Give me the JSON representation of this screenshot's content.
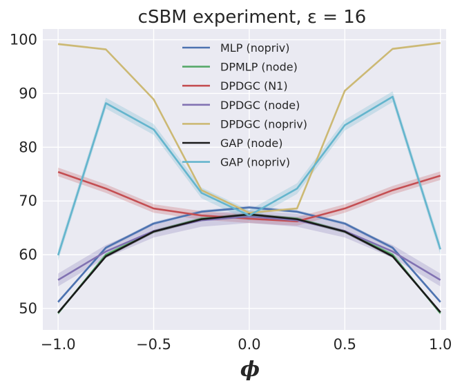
{
  "chart_data": {
    "type": "line",
    "title": "cSBM experiment, ε = 16",
    "xlabel": "ϕ",
    "ylabel": "",
    "xlim": [
      -1.08,
      1.03
    ],
    "ylim": [
      46,
      102
    ],
    "xticks": [
      -1.0,
      -0.5,
      0.0,
      0.5,
      1.0
    ],
    "xtick_labels": [
      "−1.0",
      "−0.5",
      "0.0",
      "0.5",
      "1.0"
    ],
    "yticks": [
      50,
      60,
      70,
      80,
      90,
      100
    ],
    "ytick_labels": [
      "50",
      "60",
      "70",
      "80",
      "90",
      "100"
    ],
    "grid": true,
    "background": "#eaeaf2",
    "legend_position": "top-center",
    "x": [
      -1.0,
      -0.75,
      -0.5,
      -0.25,
      0.0,
      0.25,
      0.5,
      0.75,
      1.0
    ],
    "series": [
      {
        "name": "MLP (nopriv)",
        "color": "#4c72b0",
        "values": [
          51.2,
          61.3,
          65.8,
          68.0,
          68.8,
          68.0,
          65.8,
          61.3,
          51.2
        ],
        "band": 0.3
      },
      {
        "name": "DPMLP (node)",
        "color": "#55a868",
        "values": [
          49.1,
          60.0,
          64.3,
          66.7,
          67.4,
          66.7,
          64.3,
          60.0,
          49.1
        ],
        "band": 0.3
      },
      {
        "name": "DPDGC (N1)",
        "color": "#c44e52",
        "values": [
          75.4,
          72.3,
          68.6,
          67.3,
          66.7,
          66.2,
          68.6,
          72.0,
          74.7
        ],
        "band": 0.8
      },
      {
        "name": "DPDGC (node)",
        "color": "#8172b2",
        "values": [
          55.3,
          60.6,
          64.4,
          66.4,
          67.1,
          66.4,
          64.4,
          60.6,
          55.3
        ],
        "band": 1.2
      },
      {
        "name": "DPDGC (nopriv)",
        "color": "#ccb974",
        "values": [
          99.2,
          98.2,
          88.9,
          72.0,
          67.8,
          68.6,
          90.5,
          98.3,
          99.4
        ],
        "band": 0.2
      },
      {
        "name": "GAP (node)",
        "color": "#1a1a1a",
        "values": [
          49.2,
          59.7,
          64.3,
          66.6,
          67.5,
          66.6,
          64.3,
          59.7,
          49.3
        ],
        "band": 0.3
      },
      {
        "name": "GAP (nopriv)",
        "color": "#64b5cd",
        "values": [
          59.9,
          88.2,
          83.3,
          71.5,
          67.3,
          72.3,
          84.1,
          89.4,
          61.0
        ],
        "band": 1.0
      }
    ]
  }
}
